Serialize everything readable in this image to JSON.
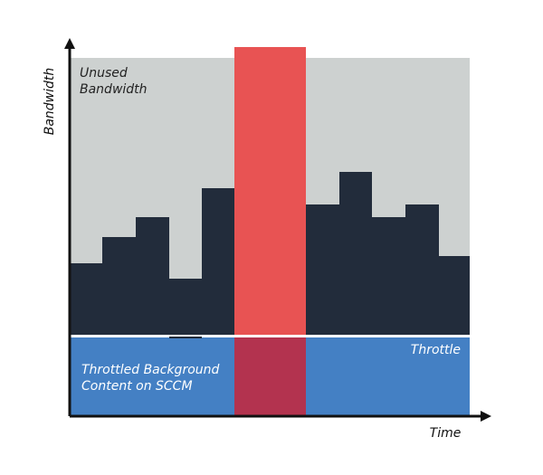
{
  "axes": {
    "y_label": "Bandwidth",
    "x_label": "Time"
  },
  "regions": {
    "unused": [
      "Unused",
      "Bandwidth"
    ],
    "throttle": "Throttle",
    "background": [
      "Throttled Background",
      "Content on SCCM"
    ]
  }
}
